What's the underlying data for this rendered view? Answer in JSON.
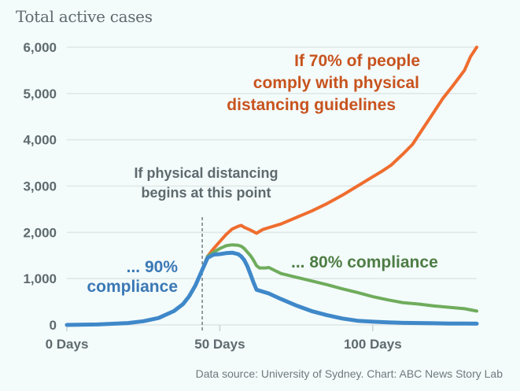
{
  "title": "Total active cases",
  "source": "Data source: University of Sydney. Chart: ABC News Story Lab",
  "colors": {
    "background": "#f3fbfb",
    "grid": "#dfe6e6",
    "axis_text": "#5e6a6e",
    "orange_line": "#ef6d2e",
    "orange_text": "#c8531e",
    "green_line": "#6fac5c",
    "green_text": "#4e7d44",
    "blue_line": "#3f88c9",
    "blue_text": "#3a78b5",
    "marker": "#5e6a6e"
  },
  "chart_data": {
    "type": "line",
    "title": "Total active cases",
    "xlabel": "",
    "ylabel": "",
    "xlim": [
      0,
      134
    ],
    "ylim": [
      0,
      6000
    ],
    "grid": true,
    "yticks": [
      {
        "value": 0,
        "label": "0"
      },
      {
        "value": 1000,
        "label": "1,000"
      },
      {
        "value": 2000,
        "label": "2,000"
      },
      {
        "value": 3000,
        "label": "3,000"
      },
      {
        "value": 4000,
        "label": "4,000"
      },
      {
        "value": 5000,
        "label": "5,000"
      },
      {
        "value": 6000,
        "label": "6,000"
      }
    ],
    "xticks": [
      {
        "value": 0,
        "label": "0 Days"
      },
      {
        "value": 50,
        "label": "50 Days"
      },
      {
        "value": 100,
        "label": "100 Days"
      }
    ],
    "series": [
      {
        "name": "70% compliance",
        "color_key": "orange_line",
        "x": [
          0,
          10,
          20,
          25,
          30,
          35,
          38,
          40,
          42,
          44,
          46,
          48,
          50,
          52,
          54,
          56,
          57,
          58,
          60,
          62,
          64,
          66,
          70,
          75,
          80,
          85,
          90,
          95,
          100,
          103,
          106,
          110,
          113,
          116,
          120,
          123,
          126,
          130,
          132,
          134
        ],
        "y": [
          0,
          10,
          40,
          80,
          150,
          300,
          450,
          620,
          850,
          1150,
          1480,
          1650,
          1800,
          1950,
          2070,
          2130,
          2150,
          2110,
          2050,
          1980,
          2060,
          2100,
          2180,
          2320,
          2460,
          2620,
          2800,
          3000,
          3200,
          3320,
          3450,
          3700,
          3900,
          4200,
          4600,
          4900,
          5150,
          5500,
          5800,
          6000
        ]
      },
      {
        "name": "80% compliance",
        "color_key": "green_line",
        "x": [
          0,
          10,
          20,
          25,
          30,
          35,
          38,
          40,
          42,
          44,
          46,
          48,
          50,
          52,
          54,
          56,
          57,
          58,
          60,
          61,
          62,
          63,
          65,
          66,
          70,
          75,
          80,
          85,
          90,
          95,
          100,
          105,
          110,
          115,
          120,
          125,
          130,
          134
        ],
        "y": [
          0,
          10,
          40,
          80,
          150,
          300,
          450,
          620,
          850,
          1150,
          1480,
          1570,
          1650,
          1710,
          1730,
          1720,
          1700,
          1650,
          1500,
          1400,
          1280,
          1230,
          1230,
          1240,
          1110,
          1030,
          950,
          870,
          780,
          700,
          610,
          540,
          480,
          450,
          410,
          380,
          350,
          300
        ]
      },
      {
        "name": "90% compliance",
        "color_key": "blue_line",
        "x": [
          0,
          10,
          20,
          25,
          30,
          35,
          38,
          40,
          42,
          44,
          46,
          48,
          50,
          52,
          54,
          56,
          57,
          58,
          59,
          60,
          61,
          62,
          64,
          66,
          70,
          75,
          80,
          85,
          90,
          95,
          100,
          105,
          110,
          115,
          120,
          125,
          130,
          134
        ],
        "y": [
          0,
          10,
          40,
          80,
          150,
          300,
          450,
          620,
          850,
          1150,
          1450,
          1520,
          1530,
          1550,
          1560,
          1530,
          1480,
          1400,
          1270,
          1100,
          920,
          760,
          720,
          680,
          560,
          420,
          300,
          210,
          140,
          90,
          70,
          55,
          45,
          40,
          35,
          30,
          30,
          28
        ]
      }
    ],
    "annotations": [
      {
        "id": "orange",
        "lines": [
          "If 70% of people",
          "comply with physical",
          "distancing guidelines"
        ]
      },
      {
        "id": "marker",
        "lines": [
          "If physical distancing",
          "begins at this point"
        ],
        "x_value": 44
      },
      {
        "id": "green",
        "lines": [
          "... 80% compliance"
        ]
      },
      {
        "id": "blue",
        "lines": [
          "... 90%",
          "compliance"
        ]
      }
    ]
  }
}
